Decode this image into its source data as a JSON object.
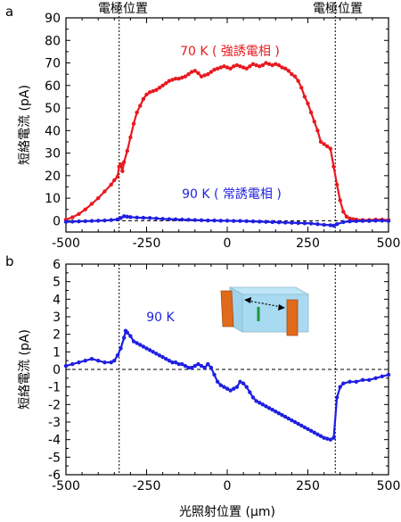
{
  "chart_data": [
    {
      "panel_label": "a",
      "type": "line",
      "xlim": [
        -500,
        500
      ],
      "ylim": [
        -5,
        90
      ],
      "xticks": [
        -500,
        -250,
        0,
        250,
        500
      ],
      "yticks": [
        0,
        10,
        20,
        30,
        40,
        50,
        60,
        70,
        80,
        90
      ],
      "ylabel": "短絡電流 (pA)",
      "grid": false,
      "electrode_label": "電極位置",
      "electrode_positions": [
        -335,
        335
      ],
      "zero_line": true,
      "series": [
        {
          "name": "70 K ( 強誘電相 )",
          "color": "#e8191f",
          "x": [
            -500,
            -480,
            -460,
            -440,
            -420,
            -400,
            -380,
            -360,
            -350,
            -340,
            -335,
            -330,
            -325,
            -320,
            -310,
            -300,
            -290,
            -280,
            -270,
            -260,
            -250,
            -240,
            -230,
            -220,
            -210,
            -200,
            -190,
            -180,
            -170,
            -160,
            -150,
            -140,
            -130,
            -120,
            -110,
            -100,
            -90,
            -80,
            -70,
            -60,
            -50,
            -40,
            -30,
            -20,
            -10,
            0,
            10,
            20,
            30,
            40,
            50,
            60,
            70,
            80,
            90,
            100,
            110,
            120,
            130,
            140,
            150,
            160,
            170,
            180,
            190,
            200,
            210,
            220,
            230,
            240,
            250,
            260,
            270,
            280,
            290,
            300,
            310,
            320,
            330,
            340,
            350,
            360,
            370,
            380,
            390,
            400,
            420,
            440,
            460,
            480,
            500
          ],
          "y": [
            0.5,
            1.5,
            3,
            5,
            7.5,
            10,
            13,
            16,
            18,
            19.5,
            24,
            25,
            22,
            26,
            31,
            37,
            43,
            48,
            51,
            54,
            56,
            57,
            57.5,
            58,
            59,
            60,
            61,
            62,
            62.5,
            63,
            63,
            63.5,
            64,
            65,
            66,
            66.5,
            65.5,
            64,
            64.5,
            65,
            66,
            67,
            67.5,
            68,
            68.5,
            68,
            67.5,
            68.5,
            69,
            68.5,
            68,
            67.5,
            68.5,
            69.5,
            69,
            68.5,
            69,
            70,
            69.5,
            69,
            69.5,
            69,
            68,
            67.5,
            66.5,
            65,
            64,
            62,
            59,
            55,
            52,
            48,
            44,
            40,
            35,
            34,
            33,
            32,
            24,
            16,
            9,
            4,
            1.8,
            1,
            0.7,
            0.5,
            0.3,
            0.3,
            0.5,
            0.5,
            0.3
          ]
        },
        {
          "name": "90 K ( 常誘電相 )",
          "color": "#1f1fe0",
          "x": [
            -500,
            -480,
            -460,
            -440,
            -420,
            -400,
            -380,
            -360,
            -340,
            -330,
            -320,
            -310,
            -300,
            -280,
            -260,
            -240,
            -220,
            -200,
            -180,
            -160,
            -140,
            -120,
            -100,
            -80,
            -60,
            -40,
            -20,
            0,
            20,
            40,
            60,
            80,
            100,
            120,
            140,
            160,
            180,
            200,
            220,
            240,
            260,
            280,
            300,
            320,
            330,
            340,
            360,
            380,
            400,
            420,
            440,
            460,
            480,
            500
          ],
          "y": [
            -0.5,
            -0.4,
            -0.3,
            -0.2,
            -0.1,
            0,
            0.1,
            0.3,
            0.6,
            1.2,
            2,
            1.8,
            1.6,
            1.4,
            1.3,
            1.2,
            1.0,
            0.8,
            0.7,
            0.6,
            0.5,
            0.4,
            0.3,
            0.2,
            0.1,
            0.1,
            0,
            0,
            -0.1,
            -0.1,
            -0.2,
            -0.3,
            -0.4,
            -0.5,
            -0.6,
            -0.7,
            -0.8,
            -0.9,
            -1.0,
            -1.1,
            -1.2,
            -1.5,
            -1.8,
            -2.0,
            -2.2,
            -1.5,
            -0.6,
            -0.3,
            -0.2,
            -0.1,
            -0.1,
            0,
            0,
            -0.1
          ]
        }
      ]
    },
    {
      "panel_label": "b",
      "type": "line",
      "xlim": [
        -500,
        500
      ],
      "ylim": [
        -6,
        6
      ],
      "xticks": [
        -500,
        -250,
        0,
        250,
        500
      ],
      "yticks": [
        -6,
        -5,
        -4,
        -3,
        -2,
        -1,
        0,
        1,
        2,
        3,
        4,
        5,
        6
      ],
      "ylabel": "短絡電流 (pA)",
      "xlabel": "光照射位置 (μm)",
      "grid": false,
      "electrode_positions": [
        -335,
        335
      ],
      "zero_line": true,
      "series": [
        {
          "name": "90 K",
          "color": "#1f1fe0",
          "x": [
            -500,
            -480,
            -460,
            -440,
            -420,
            -400,
            -380,
            -360,
            -350,
            -340,
            -330,
            -320,
            -315,
            -310,
            -300,
            -290,
            -280,
            -270,
            -260,
            -250,
            -240,
            -230,
            -220,
            -210,
            -200,
            -190,
            -180,
            -170,
            -160,
            -150,
            -140,
            -130,
            -120,
            -110,
            -100,
            -90,
            -80,
            -70,
            -60,
            -50,
            -40,
            -30,
            -20,
            -10,
            0,
            10,
            20,
            30,
            40,
            50,
            60,
            70,
            80,
            90,
            100,
            110,
            120,
            130,
            140,
            150,
            160,
            170,
            180,
            190,
            200,
            210,
            220,
            230,
            240,
            250,
            260,
            270,
            280,
            290,
            300,
            310,
            320,
            330,
            340,
            350,
            360,
            380,
            400,
            420,
            440,
            460,
            480,
            500
          ],
          "y": [
            0.2,
            0.3,
            0.4,
            0.5,
            0.6,
            0.5,
            0.4,
            0.4,
            0.5,
            0.8,
            1.2,
            1.8,
            2.2,
            2.1,
            1.9,
            1.6,
            1.5,
            1.4,
            1.3,
            1.2,
            1.1,
            1.0,
            0.9,
            0.8,
            0.7,
            0.6,
            0.5,
            0.4,
            0.4,
            0.3,
            0.3,
            0.2,
            0.1,
            0.1,
            0.2,
            0.3,
            0.2,
            0.1,
            0.3,
            0.1,
            -0.3,
            -0.7,
            -0.9,
            -1.0,
            -1.1,
            -1.2,
            -1.1,
            -1.0,
            -0.7,
            -0.8,
            -1.0,
            -1.3,
            -1.6,
            -1.8,
            -1.9,
            -2.0,
            -2.1,
            -2.2,
            -2.3,
            -2.4,
            -2.5,
            -2.6,
            -2.7,
            -2.8,
            -2.9,
            -3.0,
            -3.1,
            -3.2,
            -3.3,
            -3.4,
            -3.5,
            -3.6,
            -3.7,
            -3.8,
            -3.9,
            -3.95,
            -4.0,
            -3.9,
            -1.6,
            -1.0,
            -0.8,
            -0.7,
            -0.7,
            -0.6,
            -0.6,
            -0.5,
            -0.4,
            -0.3
          ]
        }
      ]
    }
  ]
}
